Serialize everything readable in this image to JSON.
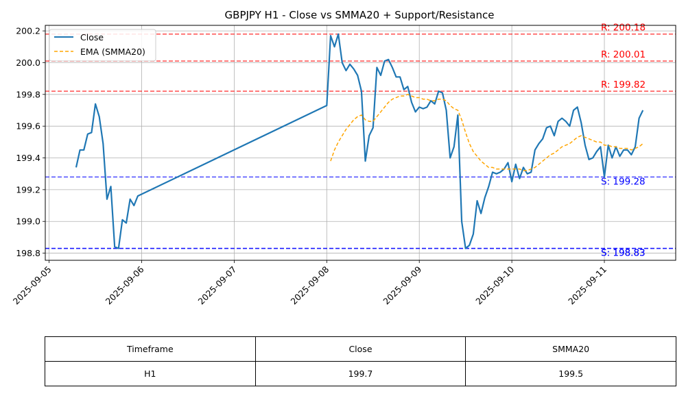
{
  "chart_data": {
    "type": "line",
    "title": "GBPJPY H1 - Close vs SMMA20 + Support/Resistance",
    "xlabel": "",
    "ylabel": "",
    "x_ticks": [
      "2025-09-05",
      "2025-09-06",
      "2025-09-07",
      "2025-09-08",
      "2025-09-09",
      "2025-09-10",
      "2025-09-11"
    ],
    "y_ticks": [
      "198.8",
      "199.0",
      "199.2",
      "199.4",
      "199.6",
      "199.8",
      "200.0",
      "200.2"
    ],
    "xlim": [
      "2025-09-04T23:00",
      "2025-09-11T18:30"
    ],
    "ylim": [
      198.755,
      200.235
    ],
    "grid": true,
    "legend_position": "top-left",
    "series": [
      {
        "name": "Close",
        "color": "#1f77b4",
        "style": "solid",
        "points": [
          [
            "2025-09-05T07:00",
            199.34
          ],
          [
            "2025-09-05T08:00",
            199.45
          ],
          [
            "2025-09-05T09:00",
            199.45
          ],
          [
            "2025-09-05T10:00",
            199.55
          ],
          [
            "2025-09-05T11:00",
            199.56
          ],
          [
            "2025-09-05T12:00",
            199.74
          ],
          [
            "2025-09-05T13:00",
            199.66
          ],
          [
            "2025-09-05T14:00",
            199.49
          ],
          [
            "2025-09-05T15:00",
            199.14
          ],
          [
            "2025-09-05T16:00",
            199.22
          ],
          [
            "2025-09-05T17:00",
            198.84
          ],
          [
            "2025-09-05T18:00",
            198.83
          ],
          [
            "2025-09-05T19:00",
            199.01
          ],
          [
            "2025-09-05T20:00",
            198.99
          ],
          [
            "2025-09-05T21:00",
            199.14
          ],
          [
            "2025-09-05T22:00",
            199.1
          ],
          [
            "2025-09-05T23:00",
            199.16
          ],
          [
            "2025-09-08T00:00",
            199.73
          ],
          [
            "2025-09-08T01:00",
            200.17
          ],
          [
            "2025-09-08T02:00",
            200.1
          ],
          [
            "2025-09-08T03:00",
            200.18
          ],
          [
            "2025-09-08T04:00",
            200.0
          ],
          [
            "2025-09-08T05:00",
            199.95
          ],
          [
            "2025-09-08T06:00",
            199.99
          ],
          [
            "2025-09-08T07:00",
            199.96
          ],
          [
            "2025-09-08T08:00",
            199.92
          ],
          [
            "2025-09-08T09:00",
            199.82
          ],
          [
            "2025-09-08T10:00",
            199.38
          ],
          [
            "2025-09-08T11:00",
            199.54
          ],
          [
            "2025-09-08T12:00",
            199.59
          ],
          [
            "2025-09-08T13:00",
            199.97
          ],
          [
            "2025-09-08T14:00",
            199.92
          ],
          [
            "2025-09-08T15:00",
            200.01
          ],
          [
            "2025-09-08T16:00",
            200.02
          ],
          [
            "2025-09-08T17:00",
            199.97
          ],
          [
            "2025-09-08T18:00",
            199.91
          ],
          [
            "2025-09-08T19:00",
            199.91
          ],
          [
            "2025-09-08T20:00",
            199.83
          ],
          [
            "2025-09-08T21:00",
            199.85
          ],
          [
            "2025-09-08T22:00",
            199.75
          ],
          [
            "2025-09-08T23:00",
            199.69
          ],
          [
            "2025-09-09T00:00",
            199.72
          ],
          [
            "2025-09-09T01:00",
            199.71
          ],
          [
            "2025-09-09T02:00",
            199.72
          ],
          [
            "2025-09-09T03:00",
            199.76
          ],
          [
            "2025-09-09T04:00",
            199.74
          ],
          [
            "2025-09-09T05:00",
            199.82
          ],
          [
            "2025-09-09T06:00",
            199.81
          ],
          [
            "2025-09-09T07:00",
            199.7
          ],
          [
            "2025-09-09T08:00",
            199.4
          ],
          [
            "2025-09-09T09:00",
            199.47
          ],
          [
            "2025-09-09T10:00",
            199.67
          ],
          [
            "2025-09-09T11:00",
            199.0
          ],
          [
            "2025-09-09T12:00",
            198.83
          ],
          [
            "2025-09-09T13:00",
            198.85
          ],
          [
            "2025-09-09T14:00",
            198.92
          ],
          [
            "2025-09-09T15:00",
            199.13
          ],
          [
            "2025-09-09T16:00",
            199.05
          ],
          [
            "2025-09-09T17:00",
            199.15
          ],
          [
            "2025-09-09T18:00",
            199.22
          ],
          [
            "2025-09-09T19:00",
            199.31
          ],
          [
            "2025-09-09T20:00",
            199.3
          ],
          [
            "2025-09-09T21:00",
            199.31
          ],
          [
            "2025-09-09T22:00",
            199.33
          ],
          [
            "2025-09-09T23:00",
            199.37
          ],
          [
            "2025-09-10T00:00",
            199.25
          ],
          [
            "2025-09-10T01:00",
            199.36
          ],
          [
            "2025-09-10T02:00",
            199.27
          ],
          [
            "2025-09-10T03:00",
            199.34
          ],
          [
            "2025-09-10T04:00",
            199.3
          ],
          [
            "2025-09-10T05:00",
            199.31
          ],
          [
            "2025-09-10T06:00",
            199.45
          ],
          [
            "2025-09-10T07:00",
            199.49
          ],
          [
            "2025-09-10T08:00",
            199.52
          ],
          [
            "2025-09-10T09:00",
            199.59
          ],
          [
            "2025-09-10T10:00",
            199.6
          ],
          [
            "2025-09-10T11:00",
            199.54
          ],
          [
            "2025-09-10T12:00",
            199.63
          ],
          [
            "2025-09-10T13:00",
            199.65
          ],
          [
            "2025-09-10T14:00",
            199.63
          ],
          [
            "2025-09-10T15:00",
            199.6
          ],
          [
            "2025-09-10T16:00",
            199.7
          ],
          [
            "2025-09-10T17:00",
            199.72
          ],
          [
            "2025-09-10T18:00",
            199.62
          ],
          [
            "2025-09-10T19:00",
            199.48
          ],
          [
            "2025-09-10T20:00",
            199.39
          ],
          [
            "2025-09-10T21:00",
            199.4
          ],
          [
            "2025-09-10T22:00",
            199.44
          ],
          [
            "2025-09-10T23:00",
            199.47
          ],
          [
            "2025-09-11T00:00",
            199.28
          ],
          [
            "2025-09-11T01:00",
            199.48
          ],
          [
            "2025-09-11T02:00",
            199.4
          ],
          [
            "2025-09-11T03:00",
            199.47
          ],
          [
            "2025-09-11T04:00",
            199.41
          ],
          [
            "2025-09-11T05:00",
            199.45
          ],
          [
            "2025-09-11T06:00",
            199.45
          ],
          [
            "2025-09-11T07:00",
            199.42
          ],
          [
            "2025-09-11T08:00",
            199.47
          ],
          [
            "2025-09-11T09:00",
            199.65
          ],
          [
            "2025-09-11T10:00",
            199.7
          ]
        ]
      },
      {
        "name": "EMA (SMMA20)",
        "color": "#ffa500",
        "style": "dashed",
        "points": [
          [
            "2025-09-08T01:00",
            199.38
          ],
          [
            "2025-09-08T02:00",
            199.45
          ],
          [
            "2025-09-08T03:00",
            199.5
          ],
          [
            "2025-09-08T04:00",
            199.54
          ],
          [
            "2025-09-08T05:00",
            199.58
          ],
          [
            "2025-09-08T06:00",
            199.61
          ],
          [
            "2025-09-08T07:00",
            199.64
          ],
          [
            "2025-09-08T08:00",
            199.66
          ],
          [
            "2025-09-08T09:00",
            199.67
          ],
          [
            "2025-09-08T10:00",
            199.64
          ],
          [
            "2025-09-08T11:00",
            199.63
          ],
          [
            "2025-09-08T12:00",
            199.63
          ],
          [
            "2025-09-08T13:00",
            199.66
          ],
          [
            "2025-09-08T14:00",
            199.69
          ],
          [
            "2025-09-08T15:00",
            199.72
          ],
          [
            "2025-09-08T16:00",
            199.75
          ],
          [
            "2025-09-08T17:00",
            199.77
          ],
          [
            "2025-09-08T18:00",
            199.78
          ],
          [
            "2025-09-08T19:00",
            199.79
          ],
          [
            "2025-09-08T20:00",
            199.79
          ],
          [
            "2025-09-08T21:00",
            199.8
          ],
          [
            "2025-09-08T22:00",
            199.79
          ],
          [
            "2025-09-08T23:00",
            199.78
          ],
          [
            "2025-09-09T00:00",
            199.78
          ],
          [
            "2025-09-09T01:00",
            199.77
          ],
          [
            "2025-09-09T02:00",
            199.77
          ],
          [
            "2025-09-09T03:00",
            199.76
          ],
          [
            "2025-09-09T04:00",
            199.76
          ],
          [
            "2025-09-09T05:00",
            199.77
          ],
          [
            "2025-09-09T06:00",
            199.77
          ],
          [
            "2025-09-09T07:00",
            199.76
          ],
          [
            "2025-09-09T08:00",
            199.73
          ],
          [
            "2025-09-09T09:00",
            199.71
          ],
          [
            "2025-09-09T10:00",
            199.7
          ],
          [
            "2025-09-09T11:00",
            199.64
          ],
          [
            "2025-09-09T12:00",
            199.56
          ],
          [
            "2025-09-09T13:00",
            199.49
          ],
          [
            "2025-09-09T14:00",
            199.44
          ],
          [
            "2025-09-09T15:00",
            199.41
          ],
          [
            "2025-09-09T16:00",
            199.38
          ],
          [
            "2025-09-09T17:00",
            199.36
          ],
          [
            "2025-09-09T18:00",
            199.34
          ],
          [
            "2025-09-09T19:00",
            199.34
          ],
          [
            "2025-09-09T20:00",
            199.33
          ],
          [
            "2025-09-09T21:00",
            199.33
          ],
          [
            "2025-09-09T22:00",
            199.33
          ],
          [
            "2025-09-09T23:00",
            199.33
          ],
          [
            "2025-09-10T00:00",
            199.33
          ],
          [
            "2025-09-10T01:00",
            199.33
          ],
          [
            "2025-09-10T02:00",
            199.33
          ],
          [
            "2025-09-10T03:00",
            199.32
          ],
          [
            "2025-09-10T04:00",
            199.32
          ],
          [
            "2025-09-10T05:00",
            199.33
          ],
          [
            "2025-09-10T06:00",
            199.34
          ],
          [
            "2025-09-10T07:00",
            199.36
          ],
          [
            "2025-09-10T08:00",
            199.38
          ],
          [
            "2025-09-10T09:00",
            199.4
          ],
          [
            "2025-09-10T10:00",
            199.42
          ],
          [
            "2025-09-10T11:00",
            199.43
          ],
          [
            "2025-09-10T12:00",
            199.45
          ],
          [
            "2025-09-10T13:00",
            199.47
          ],
          [
            "2025-09-10T14:00",
            199.48
          ],
          [
            "2025-09-10T15:00",
            199.49
          ],
          [
            "2025-09-10T16:00",
            199.51
          ],
          [
            "2025-09-10T17:00",
            199.53
          ],
          [
            "2025-09-10T18:00",
            199.54
          ],
          [
            "2025-09-10T19:00",
            199.53
          ],
          [
            "2025-09-10T20:00",
            199.52
          ],
          [
            "2025-09-10T21:00",
            199.51
          ],
          [
            "2025-09-10T22:00",
            199.5
          ],
          [
            "2025-09-10T23:00",
            199.5
          ],
          [
            "2025-09-11T00:00",
            199.48
          ],
          [
            "2025-09-11T01:00",
            199.48
          ],
          [
            "2025-09-11T02:00",
            199.47
          ],
          [
            "2025-09-11T03:00",
            199.47
          ],
          [
            "2025-09-11T04:00",
            199.46
          ],
          [
            "2025-09-11T05:00",
            199.46
          ],
          [
            "2025-09-11T06:00",
            199.46
          ],
          [
            "2025-09-11T07:00",
            199.45
          ],
          [
            "2025-09-11T08:00",
            199.46
          ],
          [
            "2025-09-11T09:00",
            199.47
          ],
          [
            "2025-09-11T10:00",
            199.49
          ]
        ]
      }
    ],
    "resistance_levels": [
      {
        "value": 200.18,
        "label": "R: 200.18",
        "color": "#ff0000"
      },
      {
        "value": 200.01,
        "label": "R: 200.01",
        "color": "#ff0000"
      },
      {
        "value": 199.82,
        "label": "R: 199.82",
        "color": "#ff0000"
      }
    ],
    "support_levels": [
      {
        "value": 199.28,
        "label": "S: 199.28",
        "color": "#0000ff"
      },
      {
        "value": 198.83,
        "label": "S: 198.83",
        "color": "#0000ff"
      },
      {
        "value": 198.83,
        "label": "S: 198.83",
        "color": "#0000ff"
      }
    ]
  },
  "table": {
    "headers": [
      "Timeframe",
      "Close",
      "SMMA20"
    ],
    "rows": [
      [
        "H1",
        "199.7",
        "199.5"
      ]
    ]
  }
}
